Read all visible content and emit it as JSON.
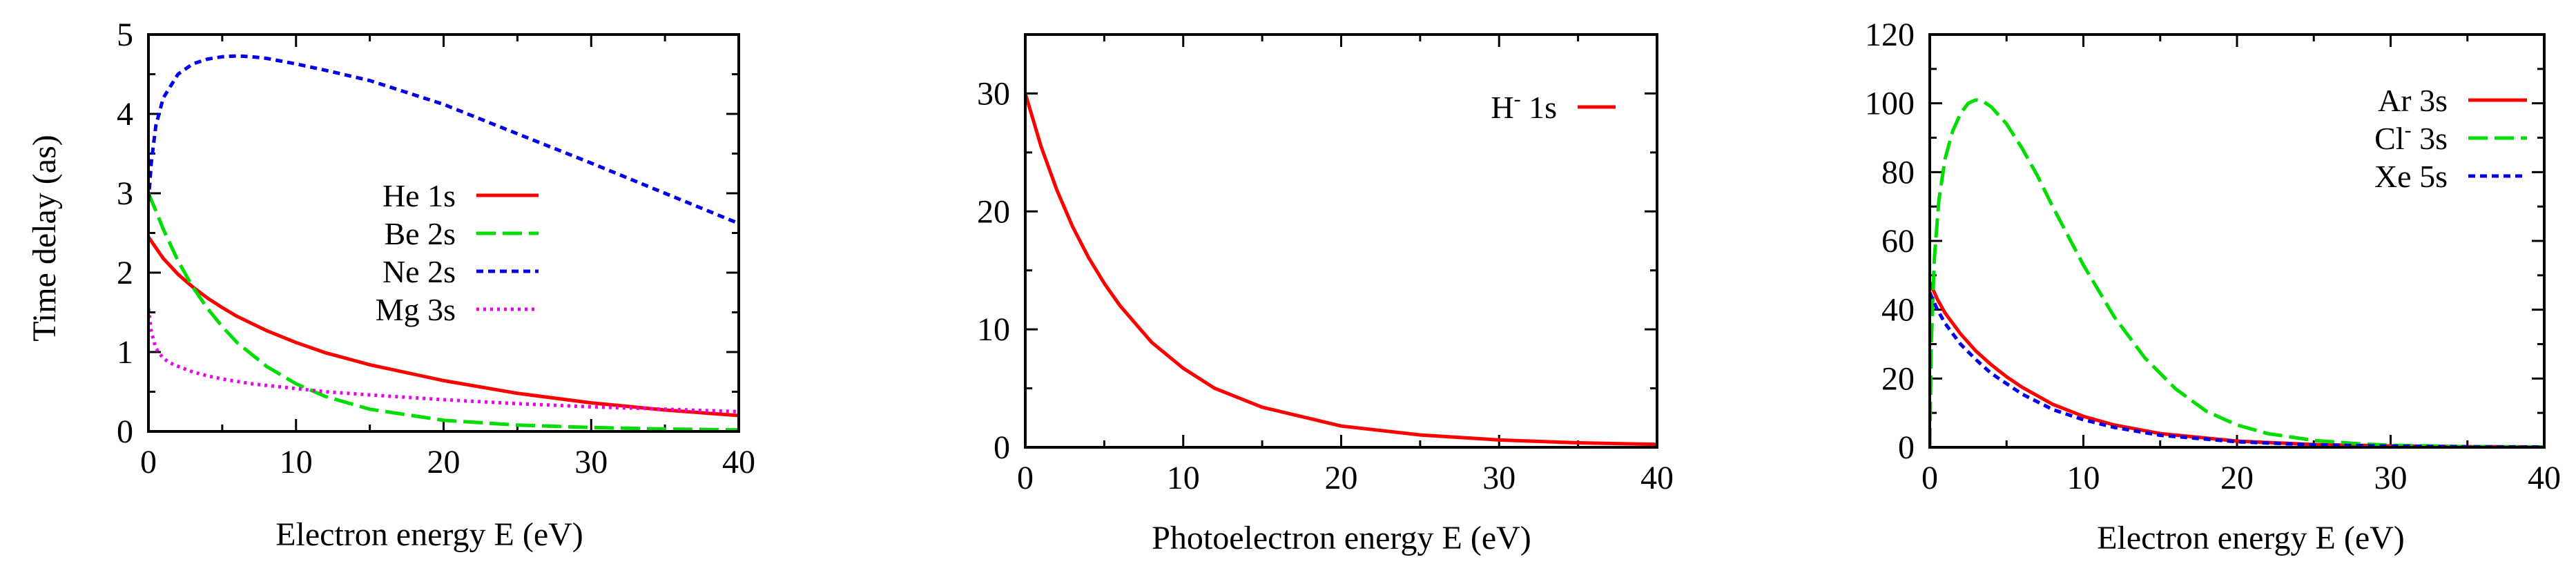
{
  "chart_data": [
    {
      "type": "line",
      "panel": "left",
      "title": "",
      "xlabel": "Electron energy E (eV)",
      "ylabel": "Time delay (as)",
      "xlim": [
        0,
        40
      ],
      "ylim": [
        0,
        5
      ],
      "xticks": [
        "0",
        "10",
        "20",
        "30",
        "40"
      ],
      "yticks": [
        "0",
        "1",
        "2",
        "3",
        "4",
        "5"
      ],
      "legend_position": "center",
      "series": [
        {
          "name": "He 1s",
          "label_main": "He 1s",
          "sup": "",
          "color": "#ff0000",
          "dash": "solid",
          "x": [
            0,
            1,
            2,
            3,
            4,
            5,
            6,
            8,
            10,
            12,
            15,
            20,
            25,
            30,
            35,
            40
          ],
          "y": [
            2.45,
            2.18,
            1.98,
            1.82,
            1.68,
            1.56,
            1.45,
            1.27,
            1.12,
            0.99,
            0.84,
            0.64,
            0.48,
            0.36,
            0.27,
            0.2
          ]
        },
        {
          "name": "Be 2s",
          "label_main": "Be 2s",
          "sup": "",
          "color": "#00dd00",
          "dash": "long-dash",
          "x": [
            0,
            0.5,
            1,
            2,
            3,
            4,
            5,
            6,
            8,
            10,
            12,
            15,
            20,
            25,
            30,
            35,
            40
          ],
          "y": [
            3.0,
            2.78,
            2.55,
            2.15,
            1.82,
            1.55,
            1.32,
            1.12,
            0.82,
            0.6,
            0.44,
            0.28,
            0.14,
            0.08,
            0.05,
            0.03,
            0.02
          ]
        },
        {
          "name": "Ne 2s",
          "label_main": "Ne 2s",
          "sup": "",
          "color": "#0000ee",
          "dash": "short-dash",
          "x": [
            0,
            0.2,
            0.5,
            1,
            2,
            3,
            4,
            5,
            6,
            7,
            8,
            10,
            12,
            15,
            20,
            25,
            30,
            35,
            40
          ],
          "y": [
            2.9,
            3.4,
            3.85,
            4.2,
            4.5,
            4.63,
            4.69,
            4.72,
            4.73,
            4.72,
            4.7,
            4.63,
            4.55,
            4.42,
            4.12,
            3.75,
            3.38,
            3.0,
            2.62
          ]
        },
        {
          "name": "Mg 3s",
          "label_main": "Mg 3s",
          "sup": "",
          "color": "#ee00ee",
          "dash": "dotted",
          "x": [
            0,
            0.2,
            0.5,
            1,
            1.5,
            2,
            3,
            4,
            5,
            7,
            10,
            12,
            15,
            20,
            25,
            30,
            35,
            40
          ],
          "y": [
            1.55,
            1.25,
            1.05,
            0.92,
            0.86,
            0.82,
            0.75,
            0.7,
            0.66,
            0.6,
            0.54,
            0.5,
            0.46,
            0.4,
            0.35,
            0.31,
            0.28,
            0.25
          ]
        }
      ]
    },
    {
      "type": "line",
      "panel": "middle",
      "title": "",
      "xlabel": "Photoelectron energy E (eV)",
      "ylabel": "",
      "xlim": [
        0,
        40
      ],
      "ylim": [
        0,
        35
      ],
      "xticks": [
        "0",
        "10",
        "20",
        "30",
        "40"
      ],
      "yticks": [
        "0",
        "10",
        "20",
        "30"
      ],
      "legend_position": "top-right",
      "series": [
        {
          "name": "H- 1s",
          "label_main": "H",
          "sup": "-",
          "label_rest": " 1s",
          "color": "#ff0000",
          "dash": "solid",
          "x": [
            0,
            1,
            2,
            3,
            4,
            5,
            6,
            8,
            10,
            12,
            15,
            20,
            25,
            30,
            35,
            40
          ],
          "y": [
            30.0,
            25.5,
            21.8,
            18.7,
            16.1,
            13.9,
            12.0,
            8.9,
            6.7,
            5.0,
            3.4,
            1.8,
            1.05,
            0.62,
            0.38,
            0.25
          ]
        }
      ]
    },
    {
      "type": "line",
      "panel": "right",
      "title": "",
      "xlabel": "Electron energy E (eV)",
      "ylabel": "",
      "xlim": [
        0,
        40
      ],
      "ylim": [
        0,
        120
      ],
      "xticks": [
        "0",
        "10",
        "20",
        "30",
        "40"
      ],
      "yticks": [
        "0",
        "20",
        "40",
        "60",
        "80",
        "100",
        "120"
      ],
      "legend_position": "top-right",
      "series": [
        {
          "name": "Ar 3s",
          "label_main": "Ar  3s",
          "sup": "",
          "color": "#ff0000",
          "dash": "solid",
          "x": [
            0,
            0.5,
            1,
            2,
            3,
            4,
            5,
            6,
            8,
            10,
            12,
            15,
            20,
            25,
            30,
            35,
            40
          ],
          "y": [
            48,
            43,
            39,
            33,
            28,
            24,
            20.5,
            17.5,
            12.5,
            9.0,
            6.5,
            4.0,
            1.8,
            0.8,
            0.4,
            0.2,
            0.1
          ]
        },
        {
          "name": "Cl- 3s",
          "label_main": "Cl",
          "sup": "-",
          "label_rest": " 3s",
          "color": "#00dd00",
          "dash": "long-dash",
          "x": [
            0,
            0.1,
            0.3,
            0.6,
            1,
            1.5,
            2,
            2.5,
            3,
            3.5,
            4,
            5,
            6,
            7,
            8,
            10,
            12,
            14,
            16,
            18,
            20,
            22,
            25,
            28,
            30,
            35,
            40
          ],
          "y": [
            0,
            30,
            55,
            72,
            84,
            92,
            97,
            100,
            101,
            100.5,
            99,
            94,
            87,
            79,
            70,
            53,
            38,
            26,
            17,
            10.5,
            6.5,
            4.0,
            2.0,
            1.0,
            0.6,
            0.2,
            0.1
          ]
        },
        {
          "name": "Xe 5s",
          "label_main": "Xe  5s",
          "sup": "",
          "color": "#0000ee",
          "dash": "short-dash",
          "x": [
            0,
            0.5,
            1,
            2,
            3,
            4,
            5,
            6,
            8,
            10,
            12,
            15,
            20,
            25,
            30,
            35,
            40
          ],
          "y": [
            45,
            40,
            36,
            30,
            25.5,
            21.5,
            18.5,
            15.5,
            11.0,
            8.0,
            5.8,
            3.5,
            1.6,
            0.7,
            0.35,
            0.15,
            0.08
          ]
        }
      ]
    }
  ]
}
